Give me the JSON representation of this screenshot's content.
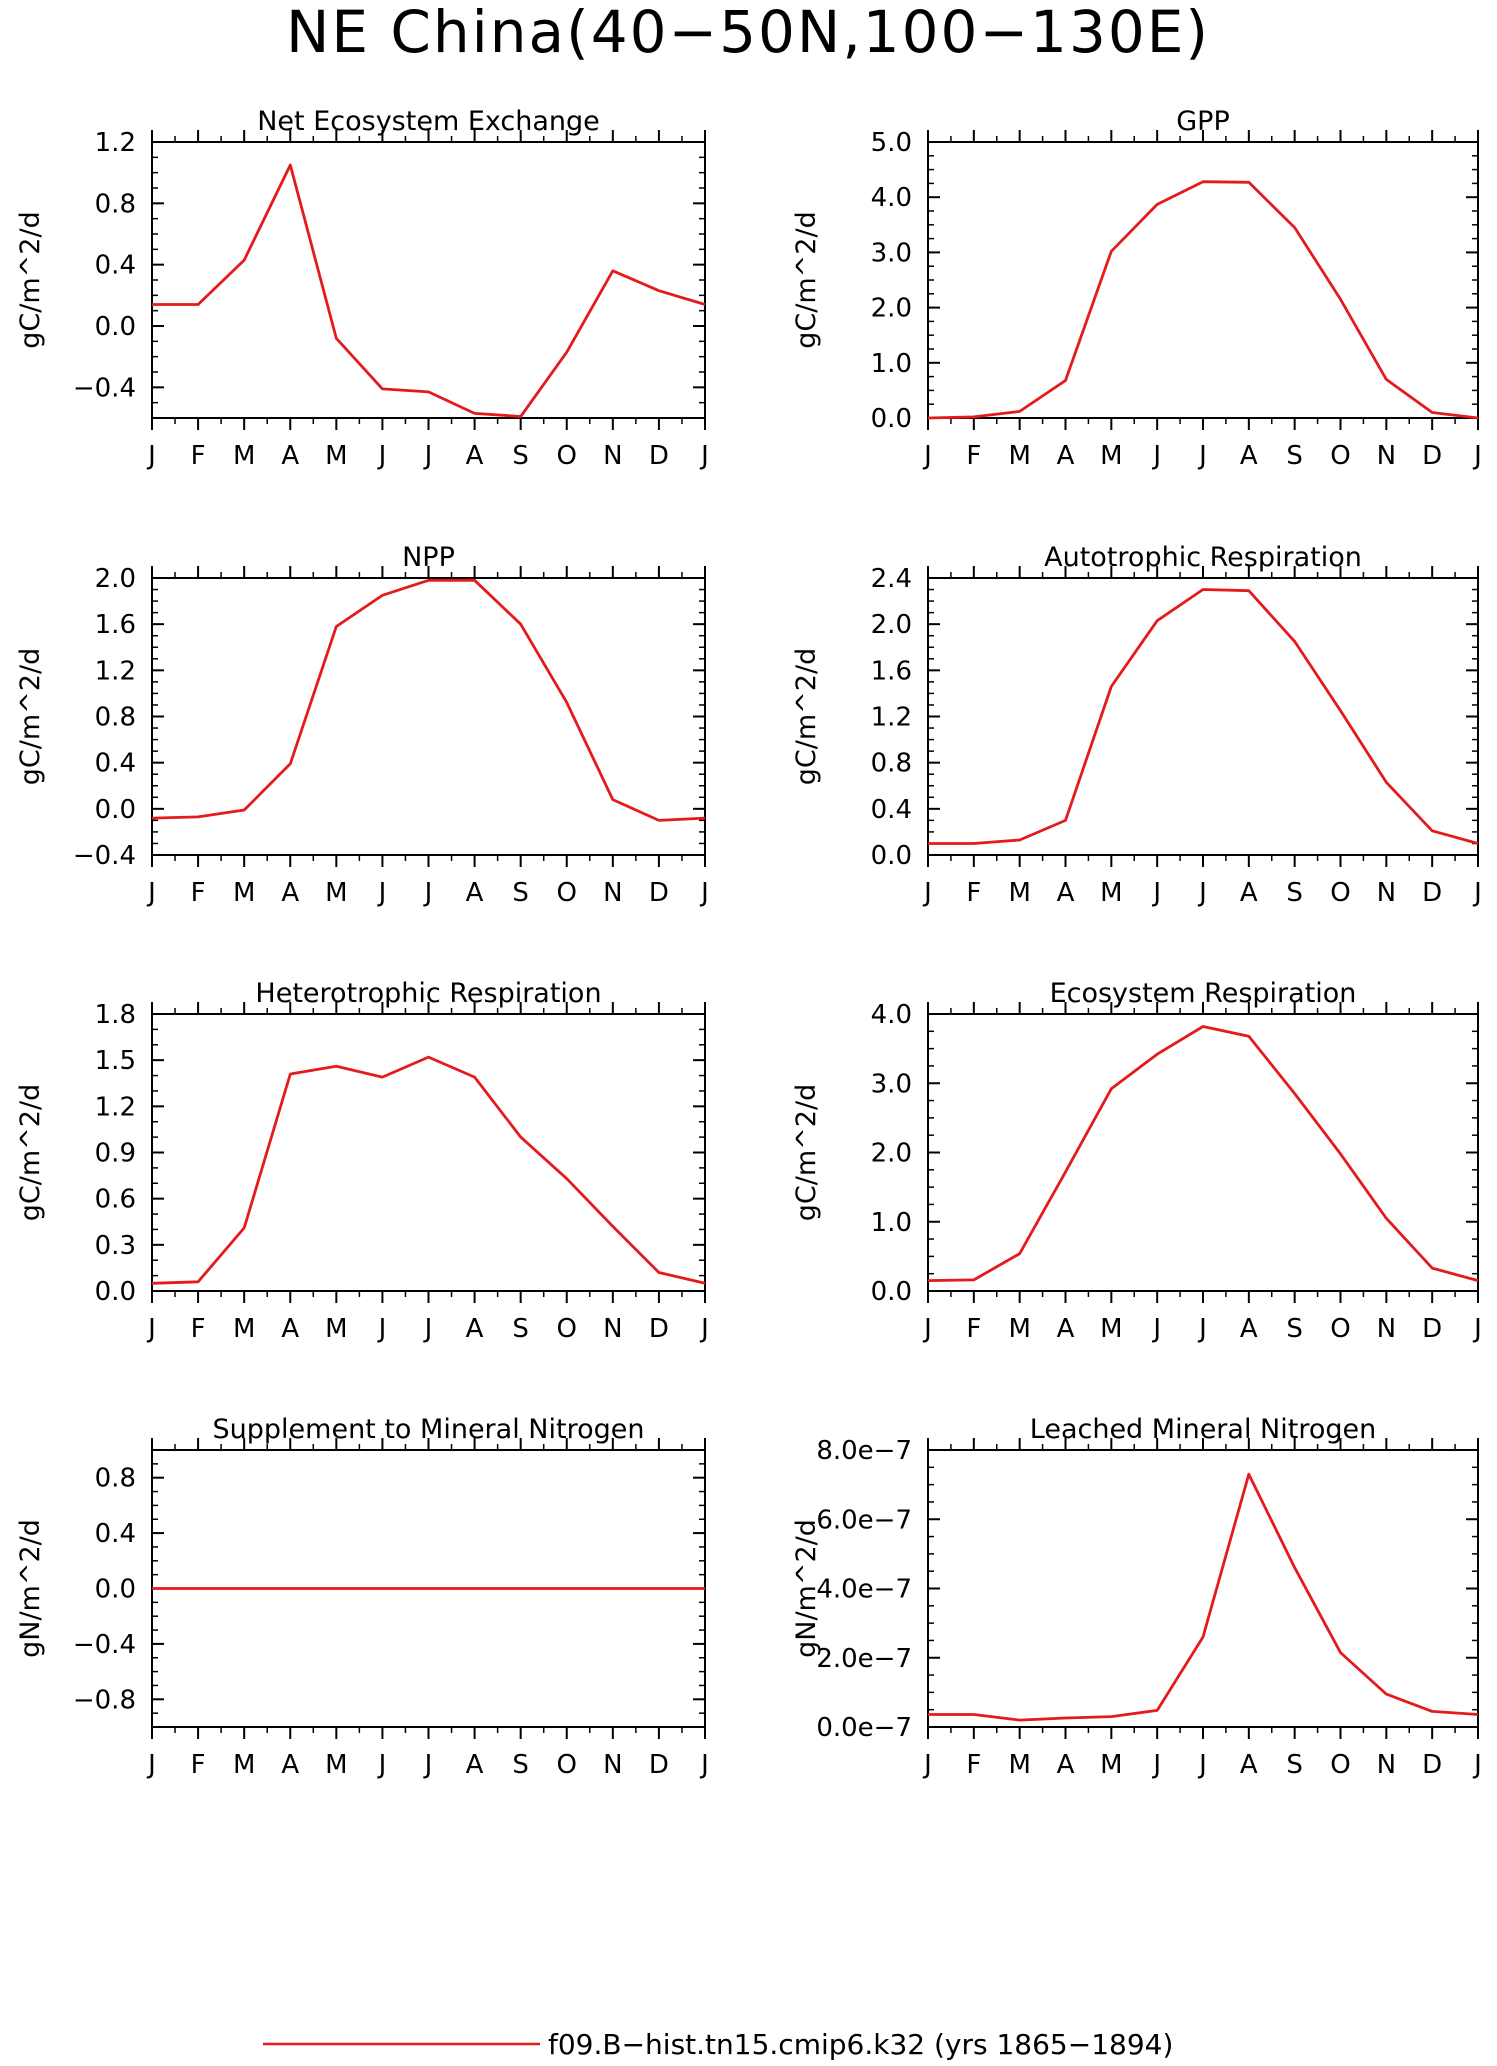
{
  "title": "NE China(40−50N,100−130E)",
  "legend": {
    "label": "f09.B−hist.tn15.cmip6.k32 (yrs 1865−1894)",
    "color": "#e41a1c"
  },
  "line_color": "#e41a1c",
  "months": [
    "J",
    "F",
    "M",
    "A",
    "M",
    "J",
    "J",
    "A",
    "S",
    "O",
    "N",
    "D",
    "J"
  ],
  "chart_data": [
    {
      "type": "line",
      "title": "Net Ecosystem Exchange",
      "ylabel": "gC/m^2/d",
      "ylim": [
        -0.6,
        1.2
      ],
      "yticks": [
        -0.4,
        0.0,
        0.4,
        0.8,
        1.2
      ],
      "ytick_labels": [
        "−0.4",
        "0.0",
        "0.4",
        "0.8",
        "1.2"
      ],
      "yminor": 0.1,
      "categories": [
        "J",
        "F",
        "M",
        "A",
        "M",
        "J",
        "J",
        "A",
        "S",
        "O",
        "N",
        "D",
        "J"
      ],
      "values": [
        0.14,
        0.14,
        0.43,
        1.05,
        -0.08,
        -0.41,
        -0.43,
        -0.57,
        -0.59,
        -0.17,
        0.36,
        0.23,
        0.14
      ]
    },
    {
      "type": "line",
      "title": "GPP",
      "ylabel": "gC/m^2/d",
      "ylim": [
        0,
        5.0
      ],
      "yticks": [
        0.0,
        1.0,
        2.0,
        3.0,
        4.0,
        5.0
      ],
      "ytick_labels": [
        "0.0",
        "1.0",
        "2.0",
        "3.0",
        "4.0",
        "5.0"
      ],
      "yminor": 0.25,
      "categories": [
        "J",
        "F",
        "M",
        "A",
        "M",
        "J",
        "J",
        "A",
        "S",
        "O",
        "N",
        "D",
        "J"
      ],
      "values": [
        0.0,
        0.02,
        0.12,
        0.68,
        3.02,
        3.87,
        4.28,
        4.27,
        3.45,
        2.15,
        0.7,
        0.1,
        0.0
      ]
    },
    {
      "type": "line",
      "title": "NPP",
      "ylabel": "gC/m^2/d",
      "ylim": [
        -0.4,
        2.0
      ],
      "yticks": [
        -0.4,
        0.0,
        0.4,
        0.8,
        1.2,
        1.6,
        2.0
      ],
      "ytick_labels": [
        "−0.4",
        "0.0",
        "0.4",
        "0.8",
        "1.2",
        "1.6",
        "2.0"
      ],
      "yminor": 0.1,
      "categories": [
        "J",
        "F",
        "M",
        "A",
        "M",
        "J",
        "J",
        "A",
        "S",
        "O",
        "N",
        "D",
        "J"
      ],
      "values": [
        -0.08,
        -0.07,
        -0.01,
        0.39,
        1.58,
        1.85,
        1.98,
        1.98,
        1.6,
        0.92,
        0.08,
        -0.1,
        -0.08
      ]
    },
    {
      "type": "line",
      "title": "Autotrophic Respiration",
      "ylabel": "gC/m^2/d",
      "ylim": [
        0,
        2.4
      ],
      "yticks": [
        0.0,
        0.4,
        0.8,
        1.2,
        1.6,
        2.0,
        2.4
      ],
      "ytick_labels": [
        "0.0",
        "0.4",
        "0.8",
        "1.2",
        "1.6",
        "2.0",
        "2.4"
      ],
      "yminor": 0.1,
      "categories": [
        "J",
        "F",
        "M",
        "A",
        "M",
        "J",
        "J",
        "A",
        "S",
        "O",
        "N",
        "D",
        "J"
      ],
      "values": [
        0.1,
        0.1,
        0.13,
        0.3,
        1.46,
        2.03,
        2.3,
        2.29,
        1.85,
        1.25,
        0.63,
        0.21,
        0.1
      ]
    },
    {
      "type": "line",
      "title": "Heterotrophic Respiration",
      "ylabel": "gC/m^2/d",
      "ylim": [
        0,
        1.8
      ],
      "yticks": [
        0.0,
        0.3,
        0.6,
        0.9,
        1.2,
        1.5,
        1.8
      ],
      "ytick_labels": [
        "0.0",
        "0.3",
        "0.6",
        "0.9",
        "1.2",
        "1.5",
        "1.8"
      ],
      "yminor": 0.1,
      "categories": [
        "J",
        "F",
        "M",
        "A",
        "M",
        "J",
        "J",
        "A",
        "S",
        "O",
        "N",
        "D",
        "J"
      ],
      "values": [
        0.05,
        0.06,
        0.41,
        1.41,
        1.46,
        1.39,
        1.52,
        1.39,
        1.0,
        0.73,
        0.42,
        0.12,
        0.05
      ]
    },
    {
      "type": "line",
      "title": "Ecosystem Respiration",
      "ylabel": "gC/m^2/d",
      "ylim": [
        0,
        4.0
      ],
      "yticks": [
        0.0,
        1.0,
        2.0,
        3.0,
        4.0
      ],
      "ytick_labels": [
        "0.0",
        "1.0",
        "2.0",
        "3.0",
        "4.0"
      ],
      "yminor": 0.25,
      "categories": [
        "J",
        "F",
        "M",
        "A",
        "M",
        "J",
        "J",
        "A",
        "S",
        "O",
        "N",
        "D",
        "J"
      ],
      "values": [
        0.15,
        0.16,
        0.54,
        1.72,
        2.92,
        3.42,
        3.82,
        3.68,
        2.85,
        1.98,
        1.05,
        0.33,
        0.15
      ]
    },
    {
      "type": "line",
      "title": "Supplement to Mineral Nitrogen",
      "ylabel": "gN/m^2/d",
      "ylim": [
        -1.0,
        1.0
      ],
      "yticks": [
        -0.8,
        -0.4,
        0.0,
        0.4,
        0.8
      ],
      "ytick_labels": [
        "−0.8",
        "−0.4",
        "0.0",
        "0.4",
        "0.8"
      ],
      "yminor": 0.1,
      "categories": [
        "J",
        "F",
        "M",
        "A",
        "M",
        "J",
        "J",
        "A",
        "S",
        "O",
        "N",
        "D",
        "J"
      ],
      "values": [
        0,
        0,
        0,
        0,
        0,
        0,
        0,
        0,
        0,
        0,
        0,
        0,
        0
      ]
    },
    {
      "type": "line",
      "title": "Leached Mineral Nitrogen",
      "ylabel": "gN/m^2/d",
      "ylim": [
        0,
        8e-07
      ],
      "yticks": [
        0,
        2e-07,
        4e-07,
        6e-07,
        8e-07
      ],
      "ytick_labels": [
        "0.0e−7",
        "2.0e−7",
        "4.0e−7",
        "6.0e−7",
        "8.0e−7"
      ],
      "yminor": 5e-08,
      "categories": [
        "J",
        "F",
        "M",
        "A",
        "M",
        "J",
        "J",
        "A",
        "S",
        "O",
        "N",
        "D",
        "J"
      ],
      "values": [
        3.6e-08,
        3.6e-08,
        2e-08,
        2.6e-08,
        3e-08,
        4.8e-08,
        2.6e-07,
        7.3e-07,
        4.6e-07,
        2.15e-07,
        9.5e-08,
        4.5e-08,
        3.6e-08
      ]
    }
  ]
}
